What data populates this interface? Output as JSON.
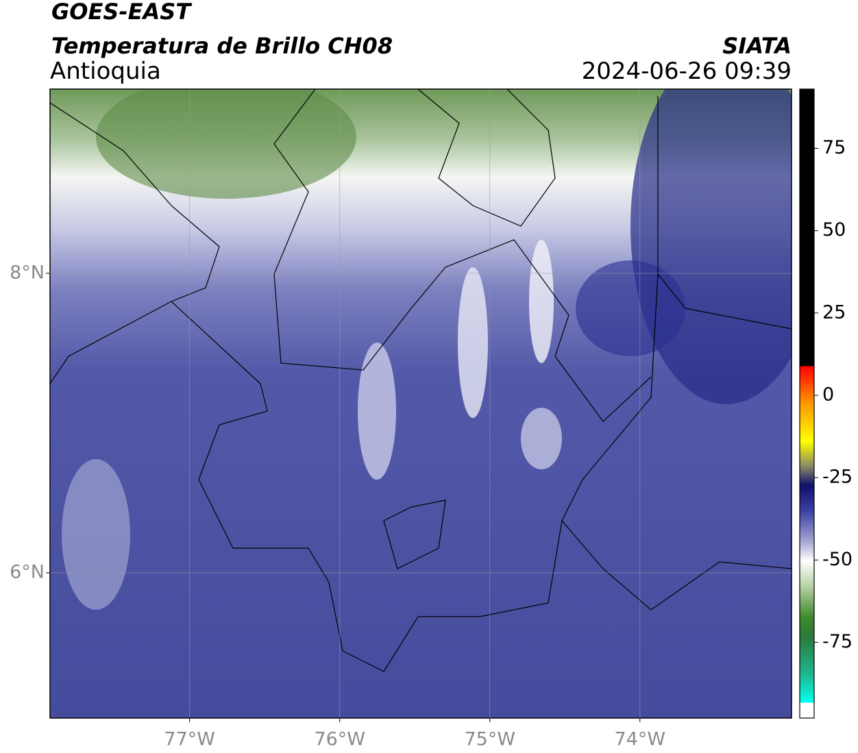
{
  "header": {
    "title": "GOES-EAST",
    "subtitle": "Temperatura de Brillo CH08",
    "region": "Antioquia",
    "source": "SIATA",
    "datetime": "2024-06-26 09:39"
  },
  "map": {
    "xlim": [
      -77.93,
      -72.99
    ],
    "ylim": [
      5.03,
      9.23
    ],
    "xticks": [
      {
        "value": -77,
        "label": "77°W"
      },
      {
        "value": -76,
        "label": "76°W"
      },
      {
        "value": -75,
        "label": "75°W"
      },
      {
        "value": -74,
        "label": "74°W"
      }
    ],
    "yticks": [
      {
        "value": 6,
        "label": "6°N"
      },
      {
        "value": 8,
        "label": "8°N"
      }
    ],
    "grid": true
  },
  "colorbar": {
    "lim": [
      -98,
      93
    ],
    "ticks": [
      75,
      50,
      25,
      0,
      -25,
      -50,
      -75
    ]
  }
}
